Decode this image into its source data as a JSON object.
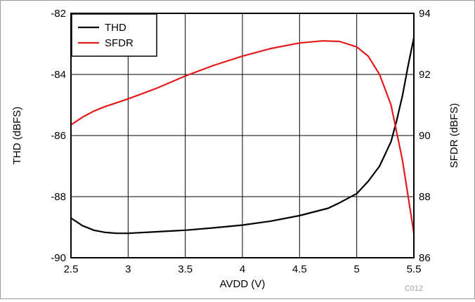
{
  "chart_data": {
    "type": "line",
    "xlabel": "AVDD (V)",
    "ylabel_left": "THD (dBFS)",
    "ylabel_right": "SFDR (dBFS)",
    "xlim": [
      2.5,
      5.5
    ],
    "ylim_left": [
      -90,
      -82
    ],
    "ylim_right": [
      86,
      94
    ],
    "x_ticks": [
      2.5,
      3,
      3.5,
      4,
      4.5,
      5,
      5.5
    ],
    "x_tick_labels": [
      "2.5",
      "3",
      "3.5",
      "4",
      "4.5",
      "5",
      "5.5"
    ],
    "y_left_ticks": [
      -90,
      -88,
      -86,
      -84,
      -82
    ],
    "y_left_tick_labels": [
      "-90",
      "-88",
      "-86",
      "-84",
      "-82"
    ],
    "y_right_ticks": [
      86,
      88,
      90,
      92,
      94
    ],
    "y_right_tick_labels": [
      "86",
      "88",
      "90",
      "92",
      "94"
    ],
    "grid": true,
    "legend_position": "top-left",
    "figure_code": "C012",
    "series": [
      {
        "name": "THD",
        "axis": "left",
        "color": "#000000",
        "x": [
          2.5,
          2.6,
          2.7,
          2.8,
          2.9,
          3.0,
          3.25,
          3.5,
          3.75,
          4.0,
          4.25,
          4.5,
          4.75,
          4.85,
          5.0,
          5.1,
          5.2,
          5.3,
          5.35,
          5.4,
          5.45,
          5.5
        ],
        "values": [
          -88.7,
          -88.95,
          -89.1,
          -89.17,
          -89.2,
          -89.2,
          -89.15,
          -89.1,
          -89.02,
          -88.93,
          -88.8,
          -88.62,
          -88.38,
          -88.2,
          -87.9,
          -87.5,
          -87.0,
          -86.2,
          -85.5,
          -84.7,
          -83.7,
          -82.8
        ]
      },
      {
        "name": "SFDR",
        "axis": "right",
        "color": "#e41a1c",
        "x": [
          2.5,
          2.6,
          2.7,
          2.8,
          3.0,
          3.25,
          3.5,
          3.75,
          4.0,
          4.25,
          4.5,
          4.7,
          4.85,
          5.0,
          5.1,
          5.2,
          5.3,
          5.4,
          5.45,
          5.5
        ],
        "values": [
          90.35,
          90.6,
          90.8,
          90.95,
          91.2,
          91.55,
          91.95,
          92.3,
          92.6,
          92.85,
          93.03,
          93.1,
          93.08,
          92.9,
          92.6,
          92.0,
          91.0,
          89.2,
          88.0,
          86.8
        ]
      }
    ]
  }
}
